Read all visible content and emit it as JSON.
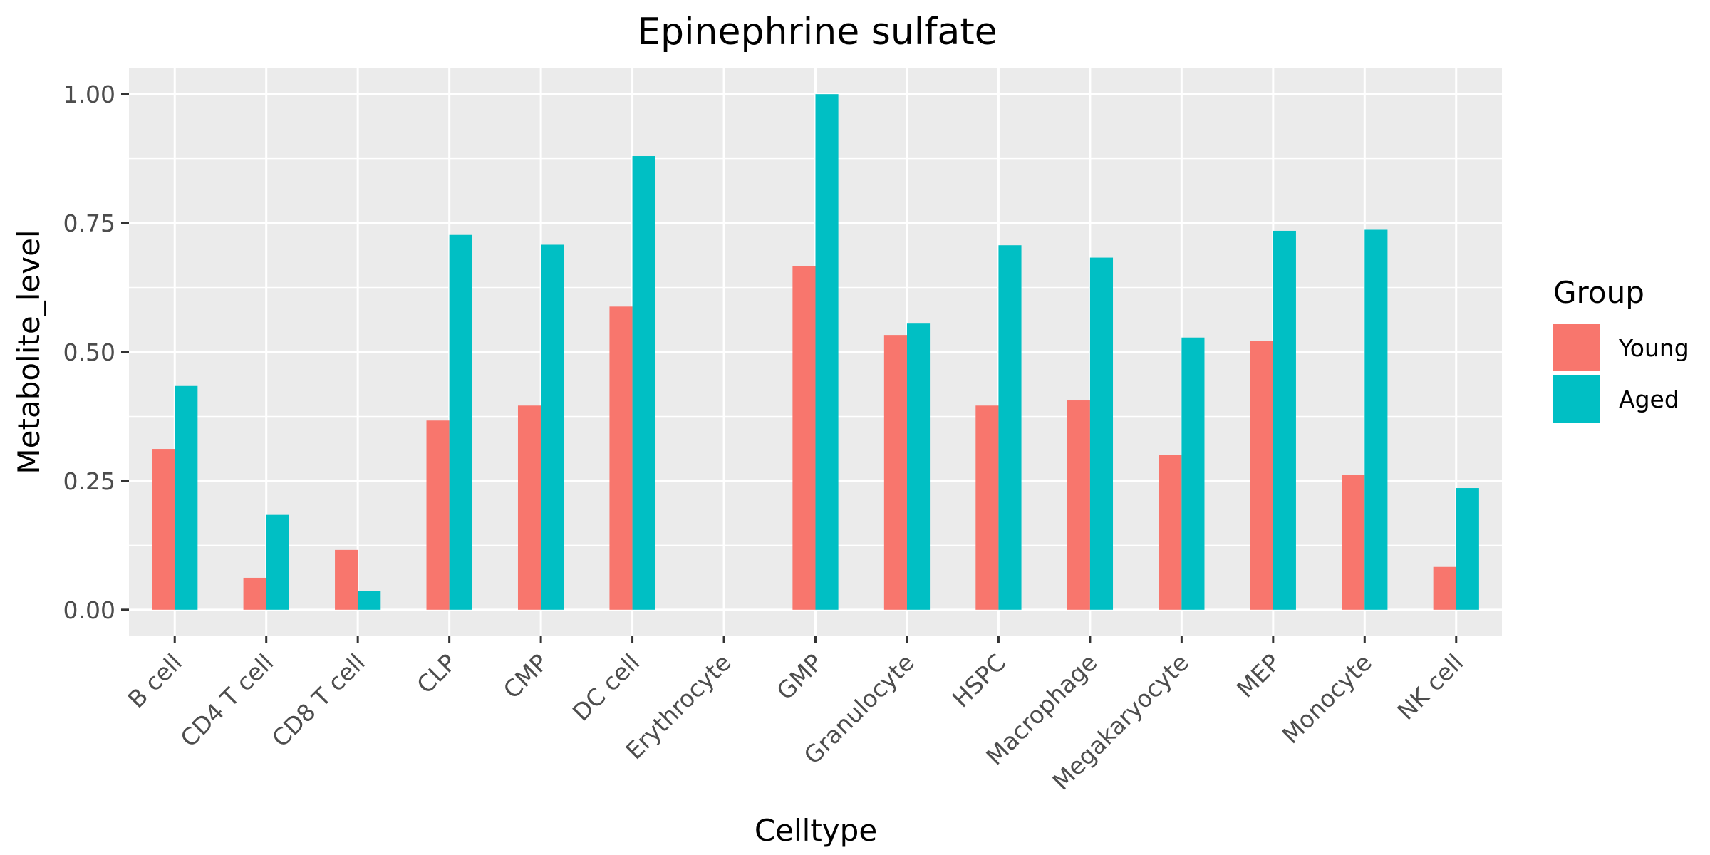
{
  "chart_data": {
    "type": "bar",
    "title": "Epinephrine sulfate",
    "xlabel": "Celltype",
    "ylabel": "Metabolite_level",
    "ylim": [
      -0.05,
      1.05
    ],
    "yticks": [
      0,
      0.25,
      0.5,
      0.75,
      1
    ],
    "ytick_labels": [
      "0.00",
      "0.25",
      "0.50",
      "0.75",
      "1.00"
    ],
    "grid": true,
    "legend": {
      "title": "Group",
      "placement": "right"
    },
    "categories": [
      "B cell",
      "CD4 T cell",
      "CD8 T cell",
      "CLP",
      "CMP",
      "DC cell",
      "Erythrocyte",
      "GMP",
      "Granulocyte",
      "HSPC",
      "Macrophage",
      "Megakaryocyte",
      "MEP",
      "Monocyte",
      "NK cell"
    ],
    "series": [
      {
        "name": "Young",
        "color": "#F8766D",
        "values": [
          0.312,
          0.062,
          0.116,
          0.367,
          0.396,
          0.588,
          0.0,
          0.666,
          0.533,
          0.396,
          0.406,
          0.3,
          0.521,
          0.262,
          0.083
        ]
      },
      {
        "name": "Aged",
        "color": "#00BFC4",
        "values": [
          0.434,
          0.184,
          0.037,
          0.727,
          0.708,
          0.88,
          0.0,
          1.0,
          0.555,
          0.707,
          0.683,
          0.528,
          0.735,
          0.737,
          0.236
        ]
      }
    ]
  }
}
